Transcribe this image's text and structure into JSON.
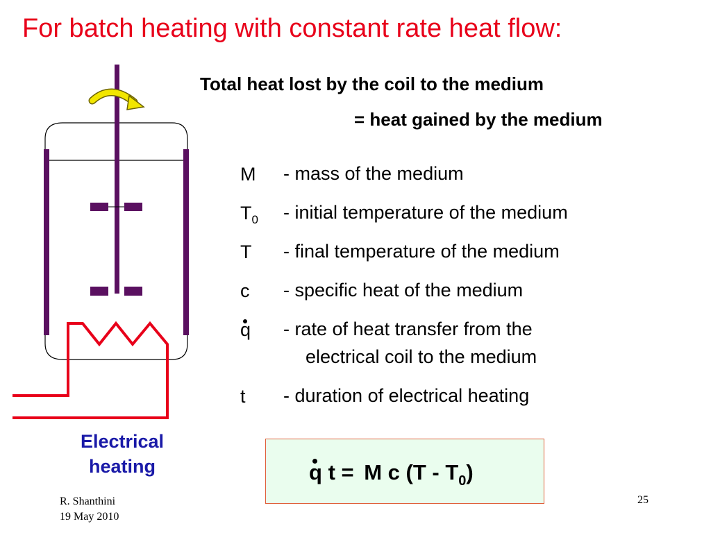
{
  "slide": {
    "title": "For batch heating with constant rate heat flow:",
    "subtitle_line1": "Total heat lost by the coil to the medium",
    "subtitle_line2": "= heat gained by the medium",
    "definitions": [
      {
        "symbol": "M",
        "subscript": "",
        "description": "- mass of the medium"
      },
      {
        "symbol": "T",
        "subscript": "0",
        "description": "- initial temperature of the medium"
      },
      {
        "symbol": "T",
        "subscript": "",
        "description": "- final temperature of the medium"
      },
      {
        "symbol": "c",
        "subscript": "",
        "description": "- specific heat of the medium"
      },
      {
        "symbol": "q",
        "subscript": "",
        "description": "- rate of heat transfer from the",
        "description_line2": "electrical coil to the medium"
      },
      {
        "symbol": "t",
        "subscript": "",
        "description": "- duration of electrical heating"
      }
    ],
    "equation": {
      "lhs_q": "q",
      "lhs_rest": "t =",
      "rhs": "M c (T - T",
      "rhs_sub": "0",
      "rhs_close": ")"
    },
    "diagram_caption_line1": "Electrical",
    "diagram_caption_line2": "heating",
    "footer_author": "R. Shanthini",
    "footer_date": "19 May 2010",
    "page_number": "25"
  },
  "colors": {
    "title": "#e8001a",
    "caption": "#1a1aa8",
    "coil": "#e8001a",
    "shaft": "#5a1060",
    "arrow": "#f2e600",
    "equation_bg": "#eafdee"
  },
  "icons": [
    "rotation-arrow-icon"
  ]
}
